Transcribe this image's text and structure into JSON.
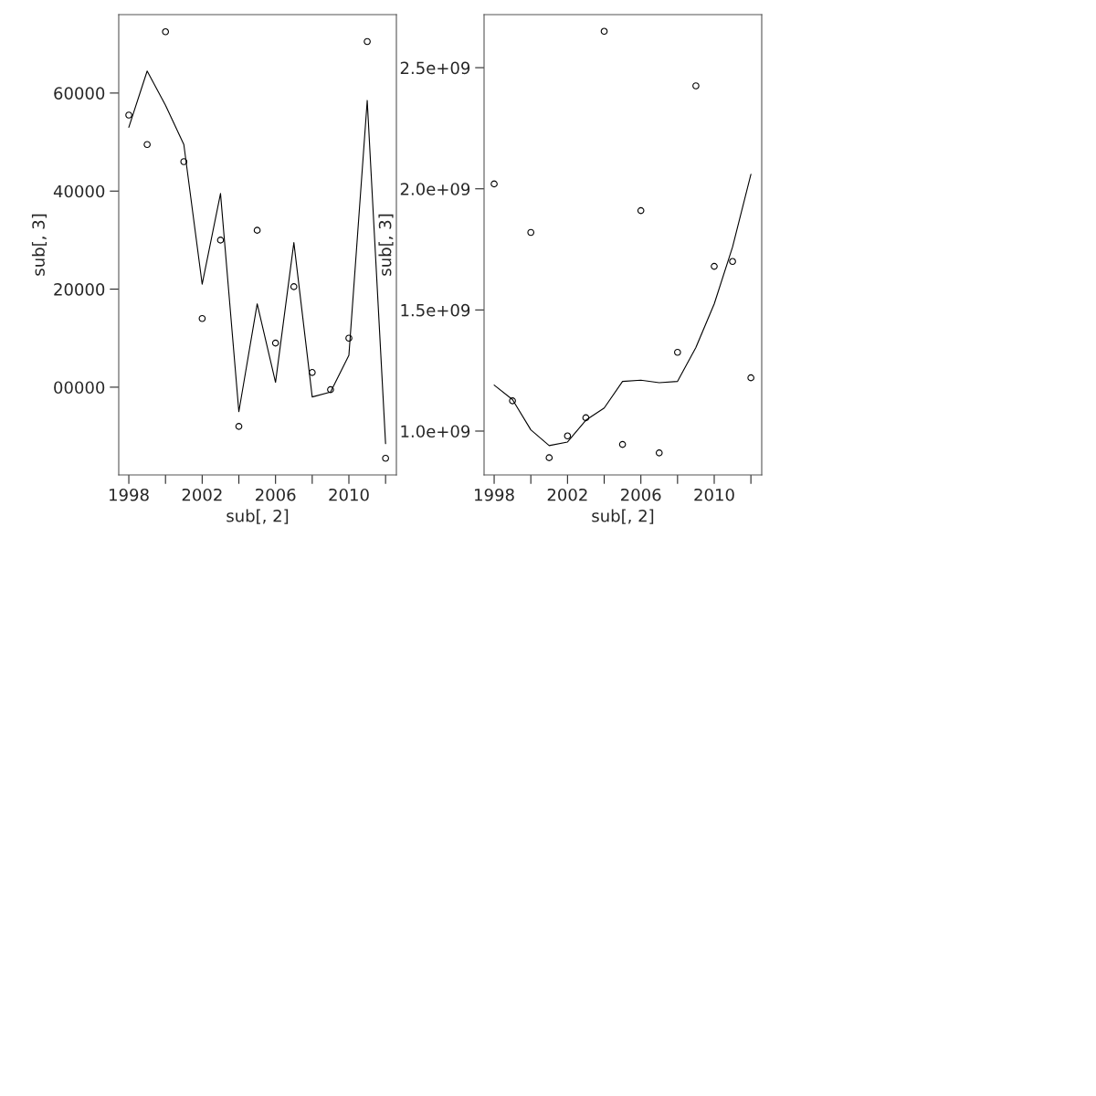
{
  "chart_data": [
    {
      "type": "scatter",
      "xlabel": "sub[, 2]",
      "ylabel": "sub[, 3]",
      "xlim": [
        1997.45,
        2012.59
      ],
      "xticks": [
        1998,
        {
          "value": 2000,
          "label": null
        },
        2002,
        {
          "value": 2004,
          "label": null
        },
        2006,
        {
          "value": 2008,
          "label": null
        },
        2010,
        {
          "value": 2012,
          "label": null
        }
      ],
      "ylim": [
        -17900,
        76000
      ],
      "yticks": [
        {
          "value": 0,
          "label": "00000"
        },
        20000,
        40000,
        60000
      ],
      "grid": false,
      "legend": false,
      "marker": "circle",
      "series": [
        {
          "type": "scatter",
          "color": "#000000",
          "x": [
            1998,
            1999,
            2000,
            2001,
            2002,
            2003,
            2004,
            2005,
            2006,
            2007,
            2008,
            2009,
            2010,
            2011,
            2012
          ],
          "values": [
            55500,
            49500,
            72500,
            46000,
            14000,
            30000,
            -8000,
            32000,
            9000,
            20500,
            3000,
            -500,
            10000,
            70500,
            -14500
          ]
        },
        {
          "type": "line",
          "color": "#000000",
          "marker": "none",
          "x": [
            1998,
            1999,
            2000,
            2001,
            2002,
            2003,
            2004,
            2005,
            2006,
            2007,
            2008,
            2009,
            2010,
            2011,
            2012
          ],
          "values": [
            53000,
            64500,
            57500,
            49500,
            21000,
            39500,
            -5000,
            17000,
            1000,
            29500,
            -2000,
            -1000,
            6500,
            58500,
            -11500
          ]
        }
      ]
    },
    {
      "type": "scatter",
      "xlabel": "sub[, 2]",
      "ylabel": "sub[, 3]",
      "xlim": [
        1997.45,
        2012.59
      ],
      "xticks": [
        1998,
        {
          "value": 2000,
          "label": null
        },
        2002,
        {
          "value": 2004,
          "label": null
        },
        2006,
        {
          "value": 2008,
          "label": null
        },
        2010,
        {
          "value": 2012,
          "label": null
        }
      ],
      "ylim": [
        819000000,
        2719000000
      ],
      "yticks": [
        {
          "value": 1000000000,
          "label": "1.0e+09"
        },
        {
          "value": 1500000000,
          "label": "1.5e+09"
        },
        {
          "value": 2000000000,
          "label": "2.0e+09"
        },
        {
          "value": 2500000000,
          "label": "2.5e+09"
        }
      ],
      "grid": false,
      "legend": false,
      "marker": "circle",
      "series": [
        {
          "type": "scatter",
          "color": "#000000",
          "x": [
            1998,
            1999,
            2000,
            2001,
            2002,
            2003,
            2004,
            2005,
            2006,
            2007,
            2008,
            2009,
            2010,
            2011,
            2012
          ],
          "values": [
            2020000000,
            1125000000,
            1820000000,
            890000000,
            980000000,
            1055000000,
            2650000000,
            945000000,
            1910000000,
            910000000,
            1325000000,
            2425000000,
            1680000000,
            1700000000,
            1220000000
          ]
        },
        {
          "type": "line",
          "color": "#000000",
          "marker": "none",
          "x": [
            1998,
            1999,
            2000,
            2001,
            2002,
            2003,
            2004,
            2005,
            2006,
            2007,
            2008,
            2009,
            2010,
            2011,
            2012
          ],
          "values": [
            1190000000,
            1130000000,
            1005000000,
            940000000,
            955000000,
            1045000000,
            1095000000,
            1205000000,
            1210000000,
            1200000000,
            1205000000,
            1345000000,
            1525000000,
            1760000000,
            2060000000
          ]
        }
      ]
    }
  ]
}
